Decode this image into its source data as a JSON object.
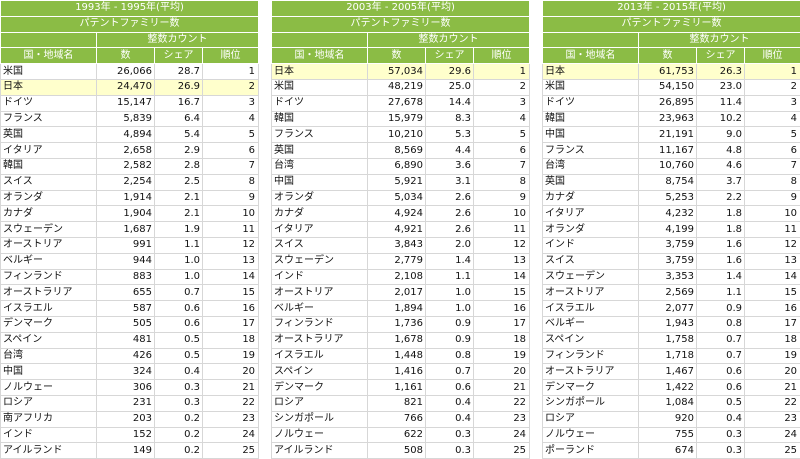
{
  "tables": [
    {
      "period": "1993年 - 1995年(平均)",
      "subtitle": "パテントファミリー数",
      "group_header": "整数カウント",
      "col_name": "国・地域名",
      "col_count": "数",
      "col_share": "シェア",
      "col_rank": "順位",
      "rows": [
        {
          "name": "米国",
          "count": "26,066",
          "share": "28.7",
          "rank": "1"
        },
        {
          "name": "日本",
          "count": "24,470",
          "share": "26.9",
          "rank": "2"
        },
        {
          "name": "ドイツ",
          "count": "15,147",
          "share": "16.7",
          "rank": "3"
        },
        {
          "name": "フランス",
          "count": "5,839",
          "share": "6.4",
          "rank": "4"
        },
        {
          "name": "英国",
          "count": "4,894",
          "share": "5.4",
          "rank": "5"
        },
        {
          "name": "イタリア",
          "count": "2,658",
          "share": "2.9",
          "rank": "6"
        },
        {
          "name": "韓国",
          "count": "2,582",
          "share": "2.8",
          "rank": "7"
        },
        {
          "name": "スイス",
          "count": "2,254",
          "share": "2.5",
          "rank": "8"
        },
        {
          "name": "オランダ",
          "count": "1,914",
          "share": "2.1",
          "rank": "9"
        },
        {
          "name": "カナダ",
          "count": "1,904",
          "share": "2.1",
          "rank": "10"
        },
        {
          "name": "スウェーデン",
          "count": "1,687",
          "share": "1.9",
          "rank": "11"
        },
        {
          "name": "オーストリア",
          "count": "991",
          "share": "1.1",
          "rank": "12"
        },
        {
          "name": "ベルギー",
          "count": "944",
          "share": "1.0",
          "rank": "13"
        },
        {
          "name": "フィンランド",
          "count": "883",
          "share": "1.0",
          "rank": "14"
        },
        {
          "name": "オーストラリア",
          "count": "655",
          "share": "0.7",
          "rank": "15"
        },
        {
          "name": "イスラエル",
          "count": "587",
          "share": "0.6",
          "rank": "16"
        },
        {
          "name": "デンマーク",
          "count": "505",
          "share": "0.6",
          "rank": "17"
        },
        {
          "name": "スペイン",
          "count": "481",
          "share": "0.5",
          "rank": "18"
        },
        {
          "name": "台湾",
          "count": "426",
          "share": "0.5",
          "rank": "19"
        },
        {
          "name": "中国",
          "count": "324",
          "share": "0.4",
          "rank": "20"
        },
        {
          "name": "ノルウェー",
          "count": "306",
          "share": "0.3",
          "rank": "21"
        },
        {
          "name": "ロシア",
          "count": "231",
          "share": "0.3",
          "rank": "22"
        },
        {
          "name": "南アフリカ",
          "count": "203",
          "share": "0.2",
          "rank": "23"
        },
        {
          "name": "インド",
          "count": "152",
          "share": "0.2",
          "rank": "24"
        },
        {
          "name": "アイルランド",
          "count": "149",
          "share": "0.2",
          "rank": "25"
        }
      ]
    },
    {
      "period": "2003年 - 2005年(平均)",
      "subtitle": "パテントファミリー数",
      "group_header": "整数カウント",
      "col_name": "国・地域名",
      "col_count": "数",
      "col_share": "シェア",
      "col_rank": "順位",
      "rows": [
        {
          "name": "日本",
          "count": "57,034",
          "share": "29.6",
          "rank": "1"
        },
        {
          "name": "米国",
          "count": "48,219",
          "share": "25.0",
          "rank": "2"
        },
        {
          "name": "ドイツ",
          "count": "27,678",
          "share": "14.4",
          "rank": "3"
        },
        {
          "name": "韓国",
          "count": "15,979",
          "share": "8.3",
          "rank": "4"
        },
        {
          "name": "フランス",
          "count": "10,210",
          "share": "5.3",
          "rank": "5"
        },
        {
          "name": "英国",
          "count": "8,569",
          "share": "4.4",
          "rank": "6"
        },
        {
          "name": "台湾",
          "count": "6,890",
          "share": "3.6",
          "rank": "7"
        },
        {
          "name": "中国",
          "count": "5,921",
          "share": "3.1",
          "rank": "8"
        },
        {
          "name": "オランダ",
          "count": "5,034",
          "share": "2.6",
          "rank": "9"
        },
        {
          "name": "カナダ",
          "count": "4,924",
          "share": "2.6",
          "rank": "10"
        },
        {
          "name": "イタリア",
          "count": "4,921",
          "share": "2.6",
          "rank": "11"
        },
        {
          "name": "スイス",
          "count": "3,843",
          "share": "2.0",
          "rank": "12"
        },
        {
          "name": "スウェーデン",
          "count": "2,779",
          "share": "1.4",
          "rank": "13"
        },
        {
          "name": "インド",
          "count": "2,108",
          "share": "1.1",
          "rank": "14"
        },
        {
          "name": "オーストリア",
          "count": "2,017",
          "share": "1.0",
          "rank": "15"
        },
        {
          "name": "ベルギー",
          "count": "1,894",
          "share": "1.0",
          "rank": "16"
        },
        {
          "name": "フィンランド",
          "count": "1,736",
          "share": "0.9",
          "rank": "17"
        },
        {
          "name": "オーストラリア",
          "count": "1,678",
          "share": "0.9",
          "rank": "18"
        },
        {
          "name": "イスラエル",
          "count": "1,448",
          "share": "0.8",
          "rank": "19"
        },
        {
          "name": "スペイン",
          "count": "1,416",
          "share": "0.7",
          "rank": "20"
        },
        {
          "name": "デンマーク",
          "count": "1,161",
          "share": "0.6",
          "rank": "21"
        },
        {
          "name": "ロシア",
          "count": "821",
          "share": "0.4",
          "rank": "22"
        },
        {
          "name": "シンガポール",
          "count": "766",
          "share": "0.4",
          "rank": "23"
        },
        {
          "name": "ノルウェー",
          "count": "622",
          "share": "0.3",
          "rank": "24"
        },
        {
          "name": "アイルランド",
          "count": "508",
          "share": "0.3",
          "rank": "25"
        }
      ]
    },
    {
      "period": "2013年 - 2015年(平均)",
      "subtitle": "パテントファミリー数",
      "group_header": "整数カウント",
      "col_name": "国・地域名",
      "col_count": "数",
      "col_share": "シェア",
      "col_rank": "順位",
      "rows": [
        {
          "name": "日本",
          "count": "61,753",
          "share": "26.3",
          "rank": "1"
        },
        {
          "name": "米国",
          "count": "54,150",
          "share": "23.0",
          "rank": "2"
        },
        {
          "name": "ドイツ",
          "count": "26,895",
          "share": "11.4",
          "rank": "3"
        },
        {
          "name": "韓国",
          "count": "23,963",
          "share": "10.2",
          "rank": "4"
        },
        {
          "name": "中国",
          "count": "21,191",
          "share": "9.0",
          "rank": "5"
        },
        {
          "name": "フランス",
          "count": "11,167",
          "share": "4.8",
          "rank": "6"
        },
        {
          "name": "台湾",
          "count": "10,760",
          "share": "4.6",
          "rank": "7"
        },
        {
          "name": "英国",
          "count": "8,754",
          "share": "3.7",
          "rank": "8"
        },
        {
          "name": "カナダ",
          "count": "5,253",
          "share": "2.2",
          "rank": "9"
        },
        {
          "name": "イタリア",
          "count": "4,232",
          "share": "1.8",
          "rank": "10"
        },
        {
          "name": "オランダ",
          "count": "4,199",
          "share": "1.8",
          "rank": "11"
        },
        {
          "name": "インド",
          "count": "3,759",
          "share": "1.6",
          "rank": "12"
        },
        {
          "name": "スイス",
          "count": "3,759",
          "share": "1.6",
          "rank": "13"
        },
        {
          "name": "スウェーデン",
          "count": "3,353",
          "share": "1.4",
          "rank": "14"
        },
        {
          "name": "オーストリア",
          "count": "2,569",
          "share": "1.1",
          "rank": "15"
        },
        {
          "name": "イスラエル",
          "count": "2,077",
          "share": "0.9",
          "rank": "16"
        },
        {
          "name": "ベルギー",
          "count": "1,943",
          "share": "0.8",
          "rank": "17"
        },
        {
          "name": "スペイン",
          "count": "1,758",
          "share": "0.7",
          "rank": "18"
        },
        {
          "name": "フィンランド",
          "count": "1,718",
          "share": "0.7",
          "rank": "19"
        },
        {
          "name": "オーストラリア",
          "count": "1,467",
          "share": "0.6",
          "rank": "20"
        },
        {
          "name": "デンマーク",
          "count": "1,422",
          "share": "0.6",
          "rank": "21"
        },
        {
          "name": "シンガポール",
          "count": "1,084",
          "share": "0.5",
          "rank": "22"
        },
        {
          "name": "ロシア",
          "count": "920",
          "share": "0.4",
          "rank": "23"
        },
        {
          "name": "ノルウェー",
          "count": "755",
          "share": "0.3",
          "rank": "24"
        },
        {
          "name": "ポーランド",
          "count": "674",
          "share": "0.3",
          "rank": "25"
        }
      ]
    }
  ],
  "highlight": {
    "name": "日本",
    "color": "#ffffcc"
  },
  "header_color": "#8bbc45"
}
